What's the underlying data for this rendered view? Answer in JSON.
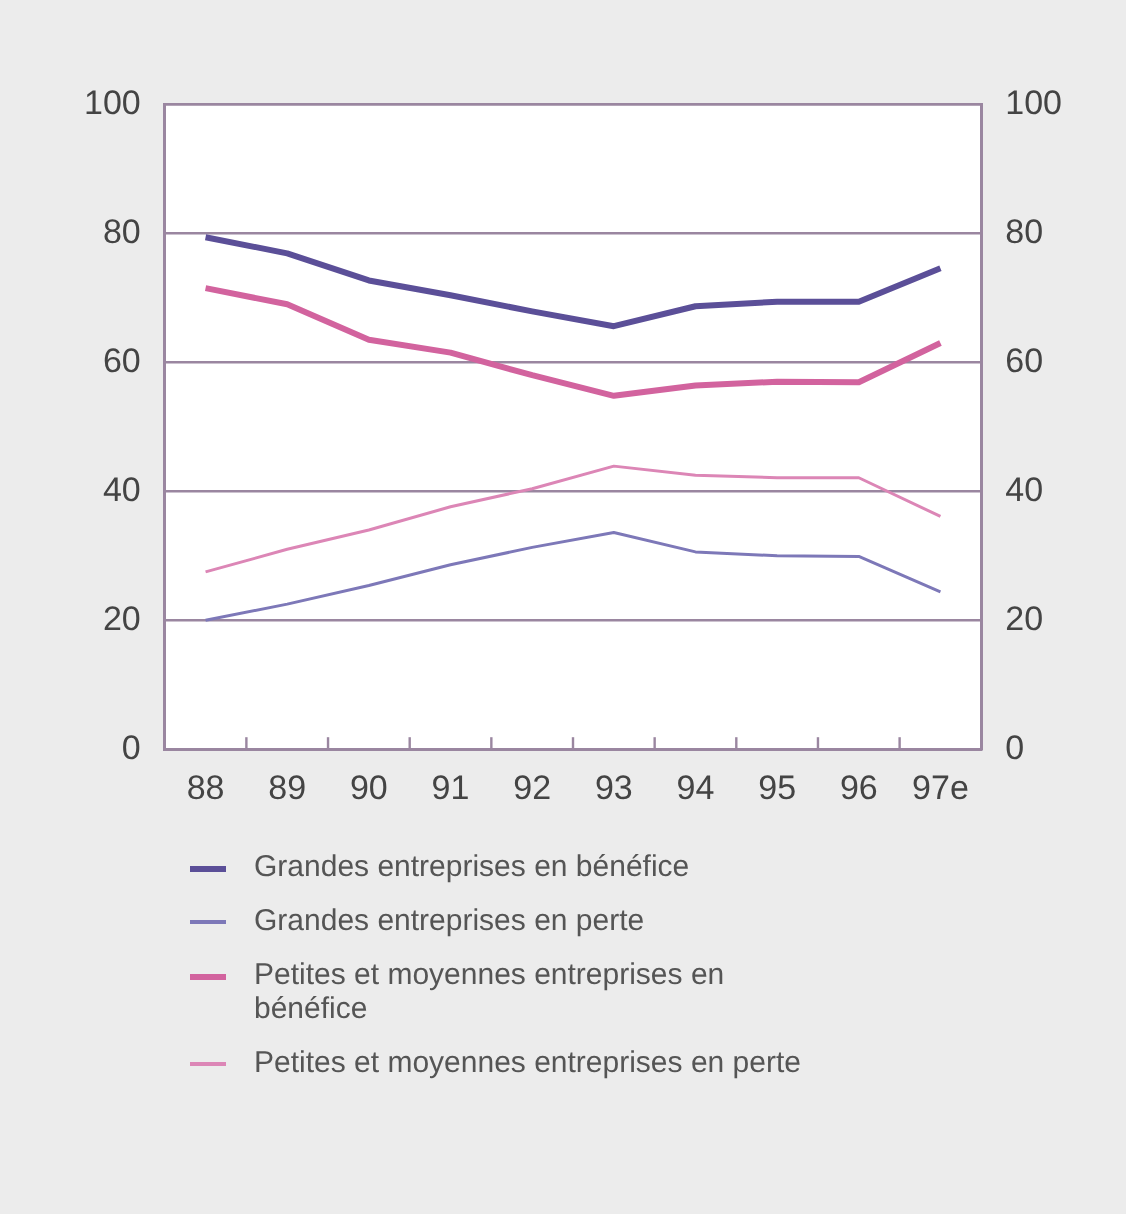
{
  "chart_data": {
    "type": "line",
    "categories": [
      "88",
      "89",
      "90",
      "91",
      "92",
      "93",
      "94",
      "95",
      "96",
      "97e"
    ],
    "series": [
      {
        "name": "Grandes entreprises en bénéfice",
        "color": "#5b4f98",
        "values": [
          79.4,
          76.9,
          72.7,
          70.4,
          67.9,
          65.6,
          68.7,
          69.4,
          69.4,
          74.6
        ]
      },
      {
        "name": "Grandes entreprises en perte",
        "color": "#7d78b8",
        "values": [
          20,
          22.5,
          25.4,
          28.6,
          31.3,
          33.6,
          30.6,
          30,
          29.9,
          24.4
        ]
      },
      {
        "name": "Petites et moyennes entreprises en bénéfice",
        "color": "#d2639e",
        "values": [
          71.5,
          69,
          63.5,
          61.5,
          58,
          54.8,
          56.4,
          57,
          56.9,
          63
        ]
      },
      {
        "name": "Petites et moyennes entreprises en perte",
        "color": "#dc86b6",
        "values": [
          27.5,
          31,
          34,
          37.6,
          40.4,
          43.9,
          42.5,
          42.1,
          42.1,
          36.1
        ]
      }
    ],
    "ylim": [
      0,
      100
    ],
    "yticks": [
      0,
      20,
      40,
      60,
      80,
      100
    ],
    "y2lim": [
      0,
      100
    ],
    "y2ticks": [
      0,
      20,
      40,
      60,
      80,
      100
    ],
    "grid": "y",
    "legend": "bottom",
    "marker": "none",
    "line_style": "solid"
  }
}
